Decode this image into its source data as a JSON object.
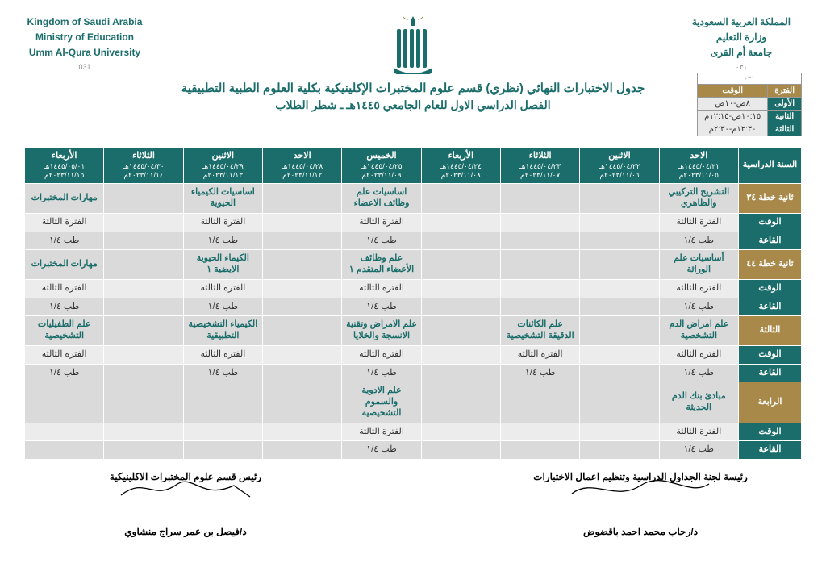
{
  "header": {
    "right": {
      "l1": "المملكة العربية السعودية",
      "l2": "وزارة التعليم",
      "l3": "جامعة أم القرى",
      "sub": "٠٣١"
    },
    "left": {
      "l1": "Kingdom of Saudi Arabia",
      "l2": "Ministry of Education",
      "l3": "Umm Al-Qura University",
      "sub": "031"
    },
    "title1": "جدول الاختبارات النهائي (نظري) قسم علوم المختبرات الإكلينيكية بكلية العلوم الطبية التطبيقية",
    "title2": "الفصل الدراسي الاول للعام الجامعي ١٤٤٥هـ ـ شطر الطلاب"
  },
  "period_box": {
    "sub": "٠٣١",
    "head": [
      "الفترة",
      "الوقت"
    ],
    "rows": [
      [
        "الأولى",
        "٨ص-١٠ص"
      ],
      [
        "الثانية",
        "١٠:١٥ص-١٢:١٥م"
      ],
      [
        "الثالثة",
        "١٢:٣٠م-٢:٣٠م"
      ]
    ]
  },
  "colors": {
    "teal": "#1a6d6a",
    "gold": "#a8894a",
    "grey": "#dadada",
    "light": "#ececec"
  },
  "days": [
    {
      "d": "الاحد",
      "h": "١٤٤٥/٠٤/٢١هـ",
      "g": "٢٠٢٣/١١/٠٥م"
    },
    {
      "d": "الاثنين",
      "h": "١٤٤٥/٠٤/٢٢هـ",
      "g": "٢٠٢٣/١١/٠٦م"
    },
    {
      "d": "الثلاثاء",
      "h": "١٤٤٥/٠٤/٢٣هـ",
      "g": "٢٠٢٣/١١/٠٧م"
    },
    {
      "d": "الأربعاء",
      "h": "١٤٤٥/٠٤/٢٤هـ",
      "g": "٢٠٢٣/١١/٠٨م"
    },
    {
      "d": "الخميس",
      "h": "١٤٤٥/٠٤/٢٥هـ",
      "g": "٢٠٢٣/١١/٠٩م"
    },
    {
      "d": "الاحد",
      "h": "١٤٤٥/٠٤/٢٨هـ",
      "g": "٢٠٢٣/١١/١٢م"
    },
    {
      "d": "الاثنين",
      "h": "١٤٤٥/٠٤/٢٩هـ",
      "g": "٢٠٢٣/١١/١٣م"
    },
    {
      "d": "الثلاثاء",
      "h": "١٤٤٥/٠٤/٣٠هـ",
      "g": "٢٠٢٣/١١/١٤م"
    },
    {
      "d": "الأربعاء",
      "h": "١٤٤٥/٠٥/٠١هـ",
      "g": "٢٠٢٣/١١/١٥م"
    }
  ],
  "year_header": "السنة الدراسية",
  "row_labels": {
    "time": "الوقت",
    "room": "القاعة"
  },
  "blocks": [
    {
      "year": "ثانية خطة ٣٤",
      "course": [
        "التشريح التركيبي والظاهري",
        "",
        "",
        "",
        "اساسيات علم وظائف الاعضاء",
        "",
        "اساسيات الكيمياء الحيوية",
        "",
        "مهارات المختبرات"
      ],
      "time": [
        "الفترة الثالثة",
        "",
        "",
        "",
        "الفترة الثالثة",
        "",
        "الفترة الثالثة",
        "",
        "الفترة الثالثة"
      ],
      "room": [
        "طب ١/٤",
        "",
        "",
        "",
        "طب ١/٤",
        "",
        "طب ١/٤",
        "",
        "طب ١/٤"
      ]
    },
    {
      "year": "ثانية خطة ٤٤",
      "course": [
        "أساسيات علم الوراثة",
        "",
        "",
        "",
        "علم وظائف الأعضاء المتقدم ١",
        "",
        "الكيماء الحيوية الايضية ١",
        "",
        "مهارات المختبرات"
      ],
      "time": [
        "الفترة الثالثة",
        "",
        "",
        "",
        "الفترة الثالثة",
        "",
        "الفترة الثالثة",
        "",
        "الفترة الثالثة"
      ],
      "room": [
        "طب ١/٤",
        "",
        "",
        "",
        "طب ١/٤",
        "",
        "طب ١/٤",
        "",
        "طب ١/٤"
      ]
    },
    {
      "year": "الثالثة",
      "course": [
        "علم امراض الدم التشخصية",
        "",
        "علم الكائنات الدقيقة التشخيصية",
        "",
        "علم الامراض وتقنية الانسجة والخلايا",
        "",
        "الكيمياء التشخيصية التطبيقية",
        "",
        "علم الطفيليات التشخيصية"
      ],
      "time": [
        "الفترة الثالثة",
        "",
        "الفترة الثالثة",
        "",
        "الفترة الثالثة",
        "",
        "الفترة الثالثة",
        "",
        "الفترة الثالثة"
      ],
      "room": [
        "طب ١/٤",
        "",
        "طب ١/٤",
        "",
        "طب ١/٤",
        "",
        "طب ١/٤",
        "",
        "طب ١/٤"
      ]
    },
    {
      "year": "الرابعة",
      "course": [
        "مبادئ بنك الدم الحديثة",
        "",
        "",
        "",
        "علم الادوية والسموم التشخيصية",
        "",
        "",
        "",
        ""
      ],
      "time": [
        "الفترة الثالثة",
        "",
        "",
        "",
        "الفترة الثالثة",
        "",
        "",
        "",
        ""
      ],
      "room": [
        "طب ١/٤",
        "",
        "",
        "",
        "طب ١/٤",
        "",
        "",
        "",
        ""
      ]
    }
  ],
  "signatures": {
    "right": {
      "title": "رئيسة لجنة الجداول الدراسية وتنظيم اعمال الاختبارات",
      "name": "د/رحاب محمد احمد باقضوض"
    },
    "left": {
      "title": "رئيس قسم علوم المختبرات الاكلينيكية",
      "name": "د/فيصل بن عمر سراج منشاوي"
    }
  }
}
